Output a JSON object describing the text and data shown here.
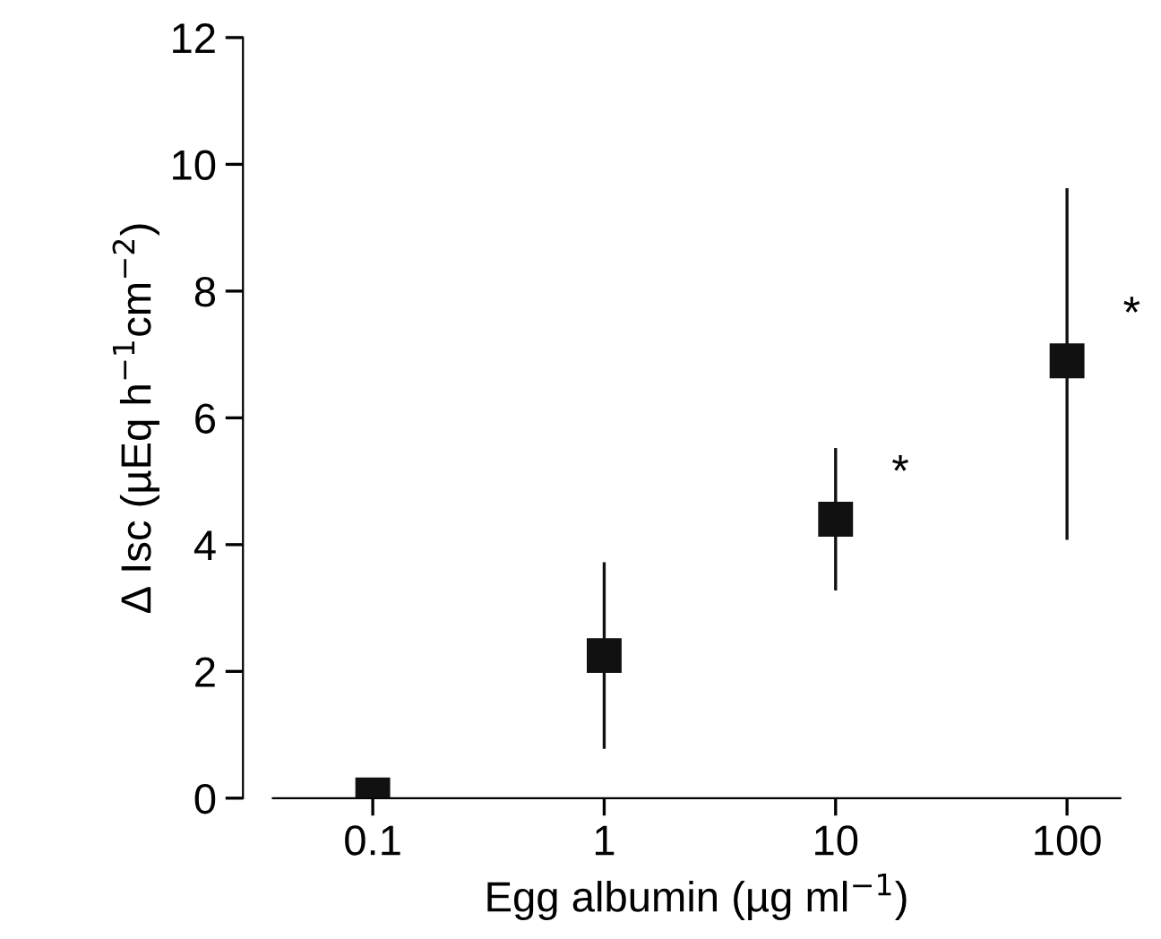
{
  "chart_data": {
    "type": "scatter",
    "xlabel": "Egg albumin (µg ml$^{−1}$)",
    "ylabel": "Δ Isc (µEq h$^{−1}$cm$^{−2}$)",
    "log": "x",
    "marker": "square",
    "grid": false,
    "xlim": [
      0.037,
      170
    ],
    "xticks": [
      0.1,
      1,
      10,
      100
    ],
    "ylim": [
      0,
      12
    ],
    "yticks": [
      0,
      2,
      4,
      6,
      8,
      10,
      12
    ],
    "series": [
      {
        "color": "#111111",
        "x": [
          0.1,
          1,
          10,
          100
        ],
        "values": [
          0.05,
          2.25,
          4.4,
          6.9
        ],
        "errors": [
          null,
          [
            0.8,
            3.7
          ],
          [
            3.3,
            5.5
          ],
          [
            4.1,
            9.6
          ]
        ]
      }
    ],
    "annotations": [
      {
        "text": "*",
        "x": 10,
        "y": 4.4
      },
      {
        "text": "*",
        "x": 100,
        "y": 6.9
      }
    ]
  }
}
